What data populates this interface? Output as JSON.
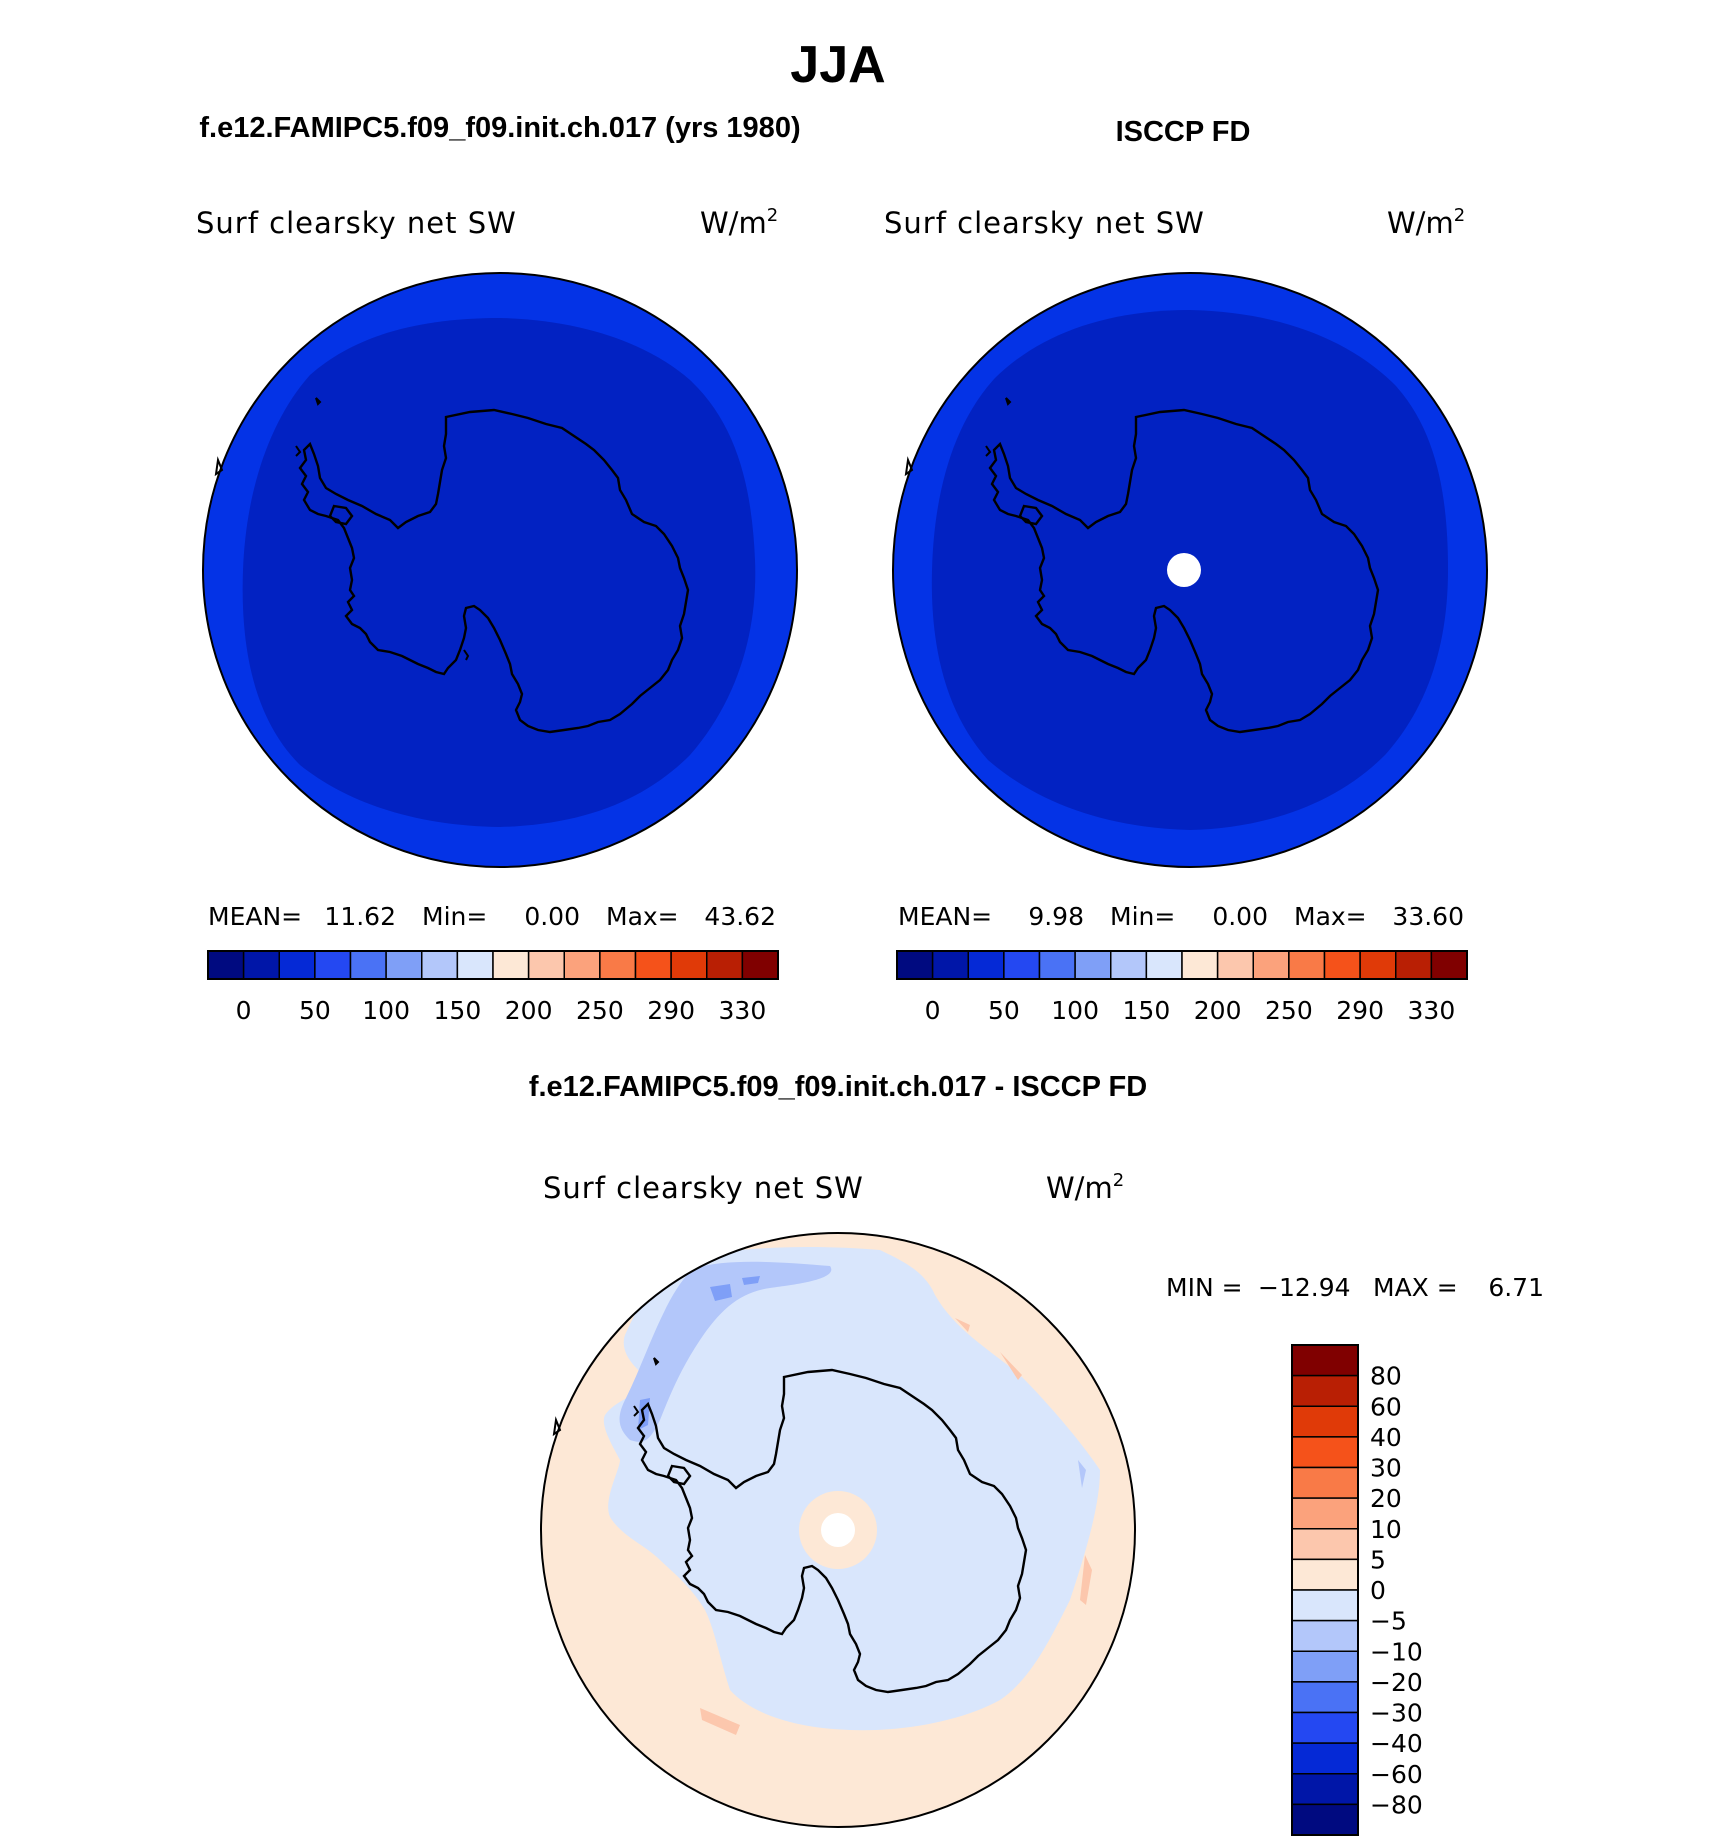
{
  "figure": {
    "title": "JJA",
    "panels": [
      {
        "id": "model",
        "header": "f.e12.FAMIPC5.f09_f09.init.ch.017 (yrs 1980)",
        "variable": "Surf clearsky net SW",
        "units_base": "W/m",
        "units_exp": "2",
        "stats": {
          "mean_label": "MEAN=",
          "mean": "11.62",
          "min_label": "Min=",
          "min": "0.00",
          "max_label": "Max=",
          "max": "43.62"
        },
        "fill_levels": [
          "10-20",
          "0-10"
        ],
        "fill_colors": [
          "#0433e6",
          "#0222c2"
        ]
      },
      {
        "id": "obs",
        "header": "ISCCP FD",
        "variable": "Surf clearsky net SW",
        "units_base": "W/m",
        "units_exp": "2",
        "stats": {
          "mean_label": "MEAN=",
          "mean": "9.98",
          "min_label": "Min=",
          "min": "0.00",
          "max_label": "Max=",
          "max": "33.60"
        },
        "fill_levels": [
          "10-20",
          "0-10"
        ],
        "fill_colors": [
          "#0433e6",
          "#0222c2"
        ],
        "missing_pole": true
      }
    ],
    "top_colorbar": {
      "colors": [
        "#000a80",
        "#0016a8",
        "#0529d6",
        "#2448f2",
        "#4a72f5",
        "#7f9ff7",
        "#b3c7fa",
        "#d9e6fc",
        "#fde8d6",
        "#fcc7ad",
        "#fba27c",
        "#f97a47",
        "#f5521a",
        "#e03a08",
        "#b91f04",
        "#800000"
      ],
      "tick_labels": [
        "0",
        "50",
        "100",
        "150",
        "200",
        "250",
        "290",
        "330"
      ]
    },
    "difference": {
      "header": "f.e12.FAMIPC5.f09_f09.init.ch.017 - ISCCP FD",
      "variable": "Surf clearsky net SW",
      "units_base": "W/m",
      "units_exp": "2",
      "min_label": "MIN =",
      "min": "−12.94",
      "max_label": "MAX =",
      "max": "6.71",
      "colorbar": {
        "colors": [
          "#800000",
          "#b91f04",
          "#e03a08",
          "#f5521a",
          "#f97a47",
          "#fba27c",
          "#fcc7ad",
          "#fde8d6",
          "#d9e6fc",
          "#b3c7fa",
          "#7f9ff7",
          "#4a72f5",
          "#2448f2",
          "#0529d6",
          "#0016a8",
          "#000a80"
        ],
        "tick_labels": [
          "80",
          "60",
          "40",
          "30",
          "20",
          "10",
          "5",
          "0",
          "−5",
          "−10",
          "−20",
          "−30",
          "−40",
          "−60",
          "−80"
        ]
      }
    }
  }
}
